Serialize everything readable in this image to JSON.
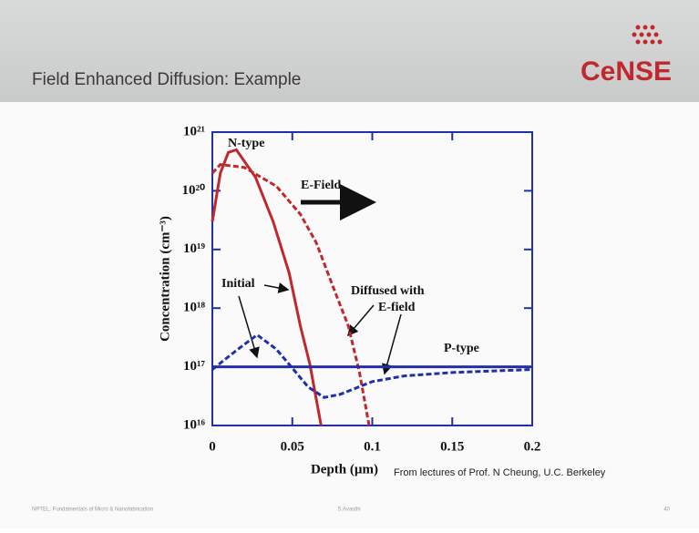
{
  "slide": {
    "title": "Field Enhanced Diffusion: Example",
    "logo": "CeNSE",
    "footer_left": "NPTEL: Fundamentals of Micro & Nanofabrication",
    "footer_center": "S.Avasthi",
    "footer_right": "40",
    "credit": "From lectures of Prof. N Cheung, U.C. Berkeley"
  },
  "chart_data": {
    "type": "line",
    "ylog": true,
    "xlabel": "Depth (µm)",
    "ylabel": "Concentration (cm⁻³)",
    "xlim": [
      0,
      0.2
    ],
    "xticks": [
      0,
      0.05,
      0.1,
      0.15,
      0.2
    ],
    "ylim": [
      1e+16,
      1e+21
    ],
    "yticks": [
      {
        "value": 1e+16,
        "label": "10¹⁶"
      },
      {
        "value": 1e+17,
        "label": "10¹⁷"
      },
      {
        "value": 1e+18,
        "label": "10¹⁸"
      },
      {
        "value": 1e+19,
        "label": "10¹⁹"
      },
      {
        "value": 1e+20,
        "label": "10²⁰"
      },
      {
        "value": 1e+21,
        "label": "10²¹"
      }
    ],
    "annotations": [
      "N-type",
      "E-Field",
      "Initial",
      "Diffused with",
      "E-field",
      "P-type"
    ],
    "series": [
      {
        "color": "#c0282d",
        "dash": false,
        "x": [
          0,
          0.005,
          0.01,
          0.015,
          0.027,
          0.038,
          0.048,
          0.055,
          0.061,
          0.068
        ],
        "values": [
          3e+19,
          2e+20,
          4.5e+20,
          5e+20,
          1.7e+20,
          3e+19,
          4e+18,
          5e+17,
          1.1e+17,
          1e+16
        ]
      },
      {
        "color": "#c0282d",
        "dash": true,
        "x": [
          0,
          0.005,
          0.02,
          0.04,
          0.055,
          0.065,
          0.075,
          0.085,
          0.092,
          0.098
        ],
        "values": [
          2e+20,
          2.8e+20,
          2.5e+20,
          1.2e+20,
          4e+19,
          1.3e+19,
          2.5e+18,
          5e+17,
          8e+16,
          1e+16
        ]
      },
      {
        "color": "#2230a8",
        "dash": true,
        "x": [
          0,
          0.015,
          0.028,
          0.04,
          0.05,
          0.06,
          0.07,
          0.08,
          0.1,
          0.12,
          0.15,
          0.2
        ],
        "values": [
          9e+16,
          1.9e+17,
          3.5e+17,
          2e+17,
          9.5e+16,
          4.5e+16,
          3e+16,
          3.4e+16,
          5.6e+16,
          7e+16,
          8e+16,
          9e+16
        ]
      },
      {
        "color": "#2230a8",
        "dash": false,
        "x": [
          0,
          0.2
        ],
        "values": [
          1e+17,
          1e+17
        ]
      }
    ]
  }
}
